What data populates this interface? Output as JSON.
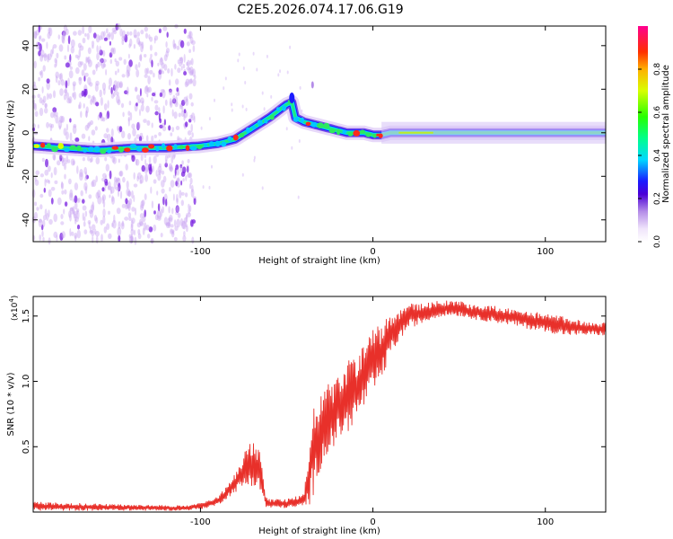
{
  "title": "C2E5.2026.074.17.06.G19",
  "chart_data": [
    {
      "type": "heatmap",
      "name": "spectrogram",
      "xlabel": "Height of straight line (km)",
      "ylabel": "Frequency (Hz)",
      "xlim": [
        -197,
        135
      ],
      "ylim": [
        -50,
        49
      ],
      "xticks": [
        -100,
        0,
        100
      ],
      "xtick_labels": [
        "-100",
        "0",
        "100"
      ],
      "yticks": [
        -40,
        -20,
        0,
        20,
        40
      ],
      "ytick_labels": [
        "-40",
        "-20",
        "0",
        "20",
        "40"
      ],
      "ridge": {
        "x": [
          -197,
          -180,
          -160,
          -140,
          -120,
          -100,
          -90,
          -80,
          -70,
          -60,
          -55,
          -50,
          -47,
          -45,
          -40,
          -35,
          -30,
          -25,
          -20,
          -15,
          -10,
          -5,
          0,
          5,
          10,
          20,
          40,
          60,
          80,
          100,
          120,
          135
        ],
        "freq": [
          -6,
          -7,
          -8,
          -7,
          -7,
          -6,
          -5,
          -3,
          2,
          7,
          10,
          13,
          14,
          7,
          5,
          4,
          3,
          2,
          1,
          0,
          0,
          0,
          -1,
          -1,
          0,
          0,
          0,
          0,
          0,
          0,
          0,
          0
        ]
      },
      "colorbar": {
        "label": "Normalized spectral amplitude",
        "ticks": [
          0.0,
          0.2,
          0.4,
          0.6,
          0.8
        ],
        "tick_labels": [
          "0.0",
          "0.2",
          "0.4",
          "0.6",
          "0.8"
        ],
        "range": [
          0,
          1
        ]
      }
    },
    {
      "type": "line",
      "name": "snr",
      "xlabel": "Height of straight line (km)",
      "ylabel": "SNR (10 * v/v)",
      "y_multiplier_label": "(x10",
      "y_multiplier_exp": "4",
      "y_multiplier_close": ")",
      "xlim": [
        -197,
        135
      ],
      "ylim": [
        0,
        1.65
      ],
      "xticks": [
        -100,
        0,
        100
      ],
      "xtick_labels": [
        "-100",
        "0",
        "100"
      ],
      "yticks": [
        0.5,
        1.0,
        1.5
      ],
      "ytick_labels": [
        "0.5",
        "1.0",
        "1.5"
      ],
      "color": "#e8302a",
      "envelope": {
        "x": [
          -197,
          -150,
          -110,
          -100,
          -90,
          -85,
          -80,
          -75,
          -70,
          -65,
          -62,
          -60,
          -55,
          -50,
          -45,
          -40,
          -37,
          -35,
          -30,
          -25,
          -20,
          -15,
          -10,
          -5,
          0,
          5,
          10,
          15,
          20,
          30,
          40,
          50,
          60,
          70,
          80,
          90,
          100,
          110,
          120,
          135
        ],
        "low": [
          0.01,
          0.01,
          0.01,
          0.02,
          0.05,
          0.1,
          0.15,
          0.18,
          0.2,
          0.15,
          0.03,
          0.03,
          0.03,
          0.03,
          0.03,
          0.04,
          0.05,
          0.1,
          0.35,
          0.45,
          0.55,
          0.6,
          0.7,
          0.8,
          0.9,
          1.0,
          1.2,
          1.3,
          1.4,
          1.45,
          1.5,
          1.5,
          1.47,
          1.45,
          1.43,
          1.4,
          1.38,
          1.35,
          1.35,
          1.35
        ],
        "high": [
          0.08,
          0.06,
          0.05,
          0.07,
          0.12,
          0.2,
          0.3,
          0.45,
          0.55,
          0.45,
          0.12,
          0.1,
          0.1,
          0.1,
          0.12,
          0.15,
          0.5,
          0.85,
          0.9,
          1.0,
          1.05,
          1.15,
          1.2,
          1.3,
          1.4,
          1.45,
          1.5,
          1.55,
          1.6,
          1.6,
          1.62,
          1.62,
          1.58,
          1.58,
          1.56,
          1.54,
          1.52,
          1.5,
          1.47,
          1.45
        ]
      }
    }
  ]
}
